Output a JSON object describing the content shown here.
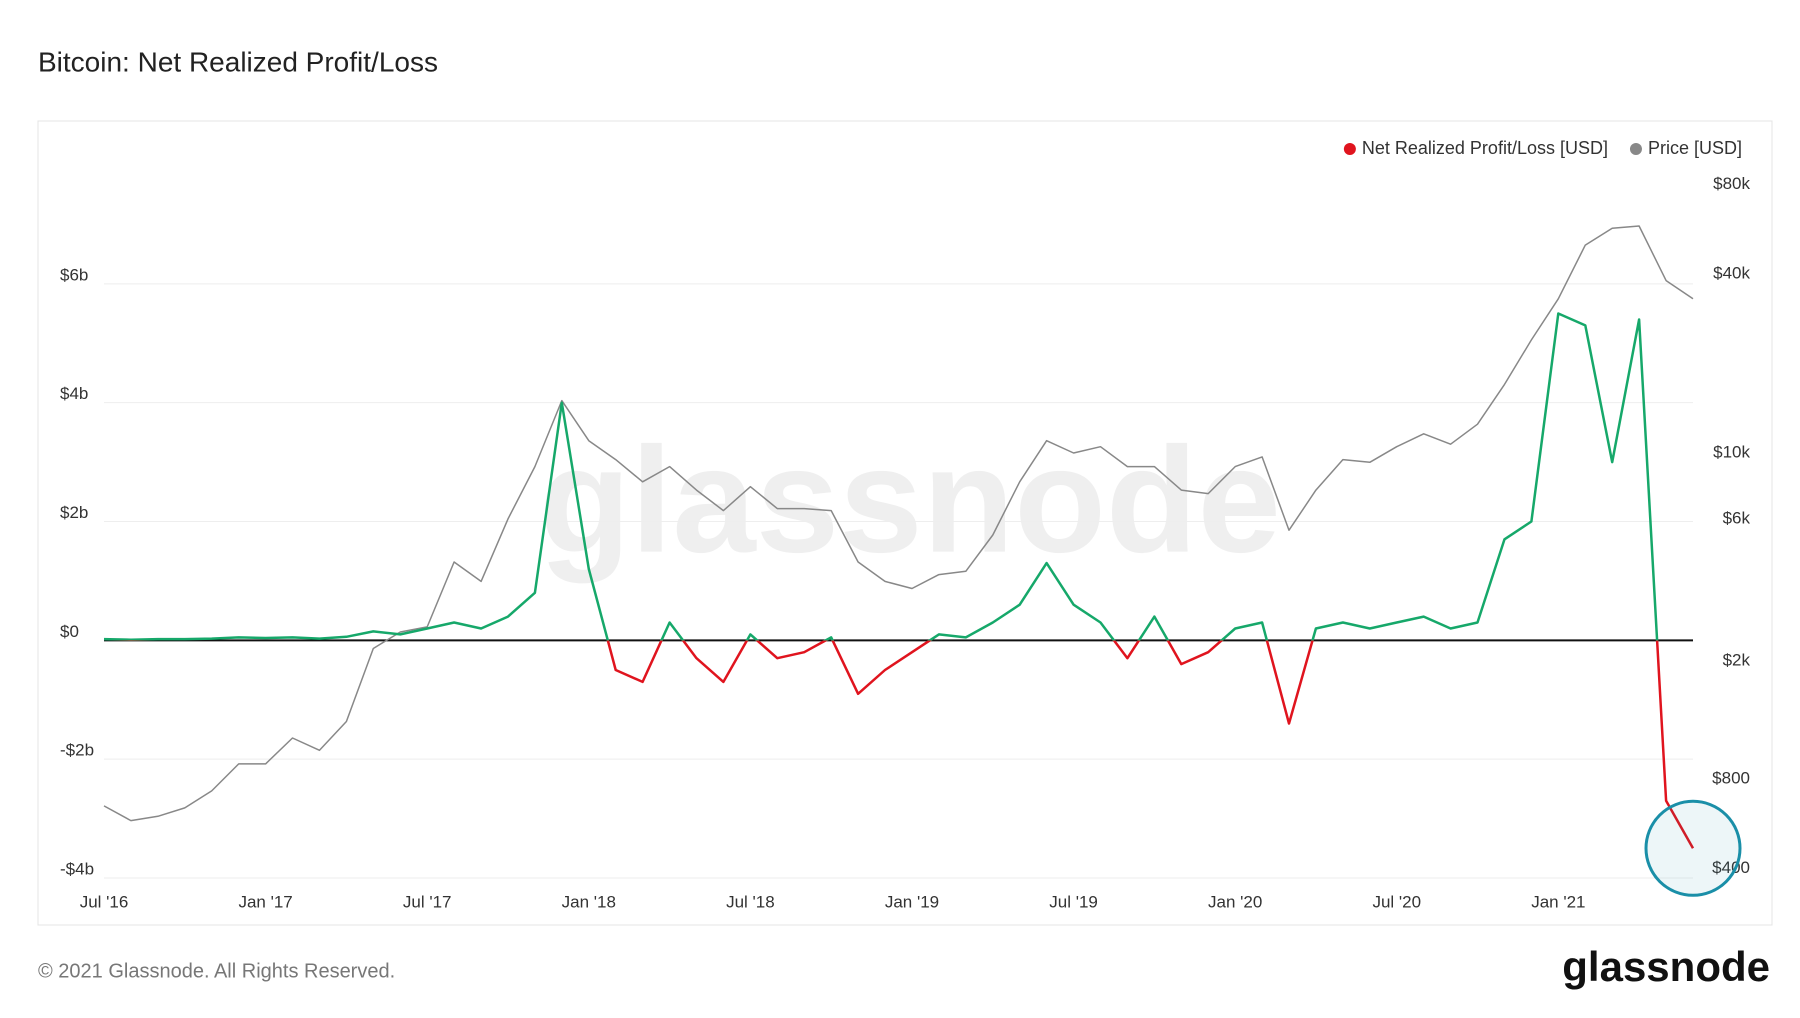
{
  "chart_data": {
    "type": "line",
    "title": "Bitcoin: Net Realized Profit/Loss",
    "watermark": "glassnode",
    "x": [
      "2016-07",
      "2016-08",
      "2016-09",
      "2016-10",
      "2016-11",
      "2016-12",
      "2017-01",
      "2017-02",
      "2017-03",
      "2017-04",
      "2017-05",
      "2017-06",
      "2017-07",
      "2017-08",
      "2017-09",
      "2017-10",
      "2017-11",
      "2017-12",
      "2018-01",
      "2018-02",
      "2018-03",
      "2018-04",
      "2018-05",
      "2018-06",
      "2018-07",
      "2018-08",
      "2018-09",
      "2018-10",
      "2018-11",
      "2018-12",
      "2019-01",
      "2019-02",
      "2019-03",
      "2019-04",
      "2019-05",
      "2019-06",
      "2019-07",
      "2019-08",
      "2019-09",
      "2019-10",
      "2019-11",
      "2019-12",
      "2020-01",
      "2020-02",
      "2020-03",
      "2020-04",
      "2020-05",
      "2020-06",
      "2020-07",
      "2020-08",
      "2020-09",
      "2020-10",
      "2020-11",
      "2020-12",
      "2021-01",
      "2021-02",
      "2021-03",
      "2021-04",
      "2021-05",
      "2021-06"
    ],
    "xlim": [
      "2016-07",
      "2021-06"
    ],
    "xticks": [
      {
        "value": "2016-07",
        "label": "Jul '16"
      },
      {
        "value": "2017-01",
        "label": "Jan '17"
      },
      {
        "value": "2017-07",
        "label": "Jul '17"
      },
      {
        "value": "2018-01",
        "label": "Jan '18"
      },
      {
        "value": "2018-07",
        "label": "Jul '18"
      },
      {
        "value": "2019-01",
        "label": "Jan '19"
      },
      {
        "value": "2019-07",
        "label": "Jul '19"
      },
      {
        "value": "2020-01",
        "label": "Jan '20"
      },
      {
        "value": "2020-07",
        "label": "Jul '20"
      },
      {
        "value": "2021-01",
        "label": "Jan '21"
      }
    ],
    "ylim": [
      -4,
      8
    ],
    "yticks": [
      {
        "value": -4,
        "label": "-$4b"
      },
      {
        "value": -2,
        "label": "-$2b"
      },
      {
        "value": 0,
        "label": "$0"
      },
      {
        "value": 2,
        "label": "$2b"
      },
      {
        "value": 4,
        "label": "$4b"
      },
      {
        "value": 6,
        "label": "$6b"
      }
    ],
    "y2lim": [
      372,
      93000
    ],
    "y2log": true,
    "y2ticks": [
      {
        "value": 400,
        "label": "$400"
      },
      {
        "value": 800,
        "label": "$800"
      },
      {
        "value": 2000,
        "label": "$2k"
      },
      {
        "value": 6000,
        "label": "$6k"
      },
      {
        "value": 10000,
        "label": "$10k"
      },
      {
        "value": 40000,
        "label": "$40k"
      },
      {
        "value": 80000,
        "label": "$80k"
      }
    ],
    "grid": true,
    "legend": "top-right",
    "positive_color": "#16a86a",
    "series": [
      {
        "name": "Net Realized Profit/Loss [USD]",
        "color": "#e0141e",
        "values": [
          0.02,
          0.01,
          0.02,
          0.02,
          0.03,
          0.05,
          0.04,
          0.05,
          0.03,
          0.06,
          0.15,
          0.1,
          0.2,
          0.3,
          0.2,
          0.4,
          0.8,
          4.0,
          1.2,
          -0.5,
          -0.7,
          0.3,
          -0.3,
          -0.7,
          0.1,
          -0.3,
          -0.2,
          0.05,
          -0.9,
          -0.5,
          -0.2,
          0.1,
          0.05,
          0.3,
          0.6,
          1.3,
          0.6,
          0.3,
          -0.3,
          0.4,
          -0.4,
          -0.2,
          0.2,
          0.3,
          -1.4,
          0.2,
          0.3,
          0.2,
          0.3,
          0.4,
          0.2,
          0.3,
          1.7,
          2.0,
          5.5,
          5.3,
          3.0,
          5.4,
          -2.7,
          -3.5
        ]
      },
      {
        "name": "Price [USD]",
        "color": "#888888",
        "axis": "y2",
        "values": [
          650,
          580,
          600,
          640,
          730,
          900,
          900,
          1100,
          1000,
          1250,
          2200,
          2500,
          2600,
          4300,
          3700,
          6000,
          9000,
          15000,
          11000,
          9500,
          8000,
          9000,
          7500,
          6400,
          7700,
          6500,
          6500,
          6400,
          4300,
          3700,
          3500,
          3900,
          4000,
          5300,
          8000,
          11000,
          10000,
          10500,
          9000,
          9000,
          7500,
          7300,
          9000,
          9700,
          5500,
          7500,
          9500,
          9300,
          10500,
          11600,
          10700,
          12500,
          17000,
          24000,
          33000,
          50000,
          57000,
          58000,
          38000,
          33000
        ]
      }
    ]
  },
  "footer": {
    "copyright": "© 2021 Glassnode. All Rights Reserved.",
    "logo": "glassnode"
  }
}
